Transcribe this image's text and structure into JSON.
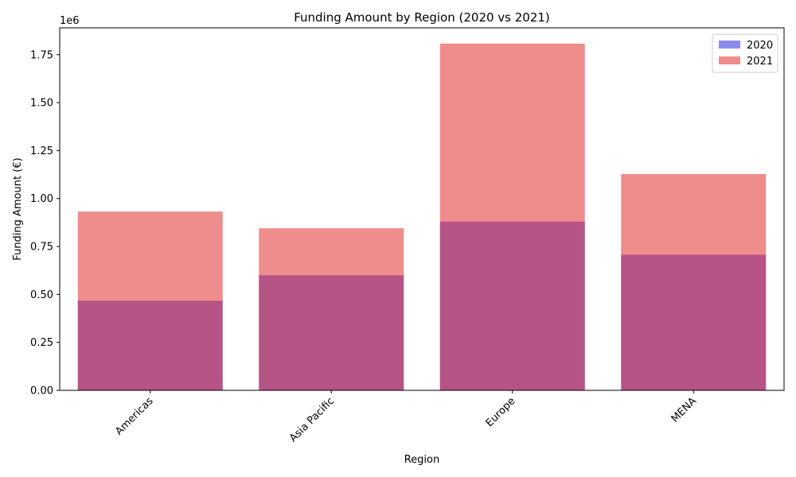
{
  "chart_data": {
    "type": "bar",
    "title": "Funding Amount by Region (2020 vs 2021)",
    "xlabel": "Region",
    "ylabel": "Funding Amount (€)",
    "y_offset_label": "1e6",
    "categories": [
      "Americas",
      "Asia Pacific",
      "Europe",
      "MENA"
    ],
    "series": [
      {
        "name": "2020",
        "values": [
          467000,
          600000,
          880000,
          707000
        ],
        "color": "#0000dd",
        "opacity": 0.45
      },
      {
        "name": "2021",
        "values": [
          932000,
          845000,
          1808000,
          1128000
        ],
        "color": "#e01b1b",
        "opacity": 0.5
      }
    ],
    "ylim": [
      0,
      1890000
    ],
    "yticks": [
      0,
      250000,
      500000,
      750000,
      1000000,
      1250000,
      1500000,
      1750000
    ],
    "ytick_labels": [
      "0.00",
      "0.25",
      "0.50",
      "0.75",
      "1.00",
      "1.25",
      "1.50",
      "1.75"
    ],
    "legend_position": "top-right",
    "grid": false,
    "overlay": true
  }
}
